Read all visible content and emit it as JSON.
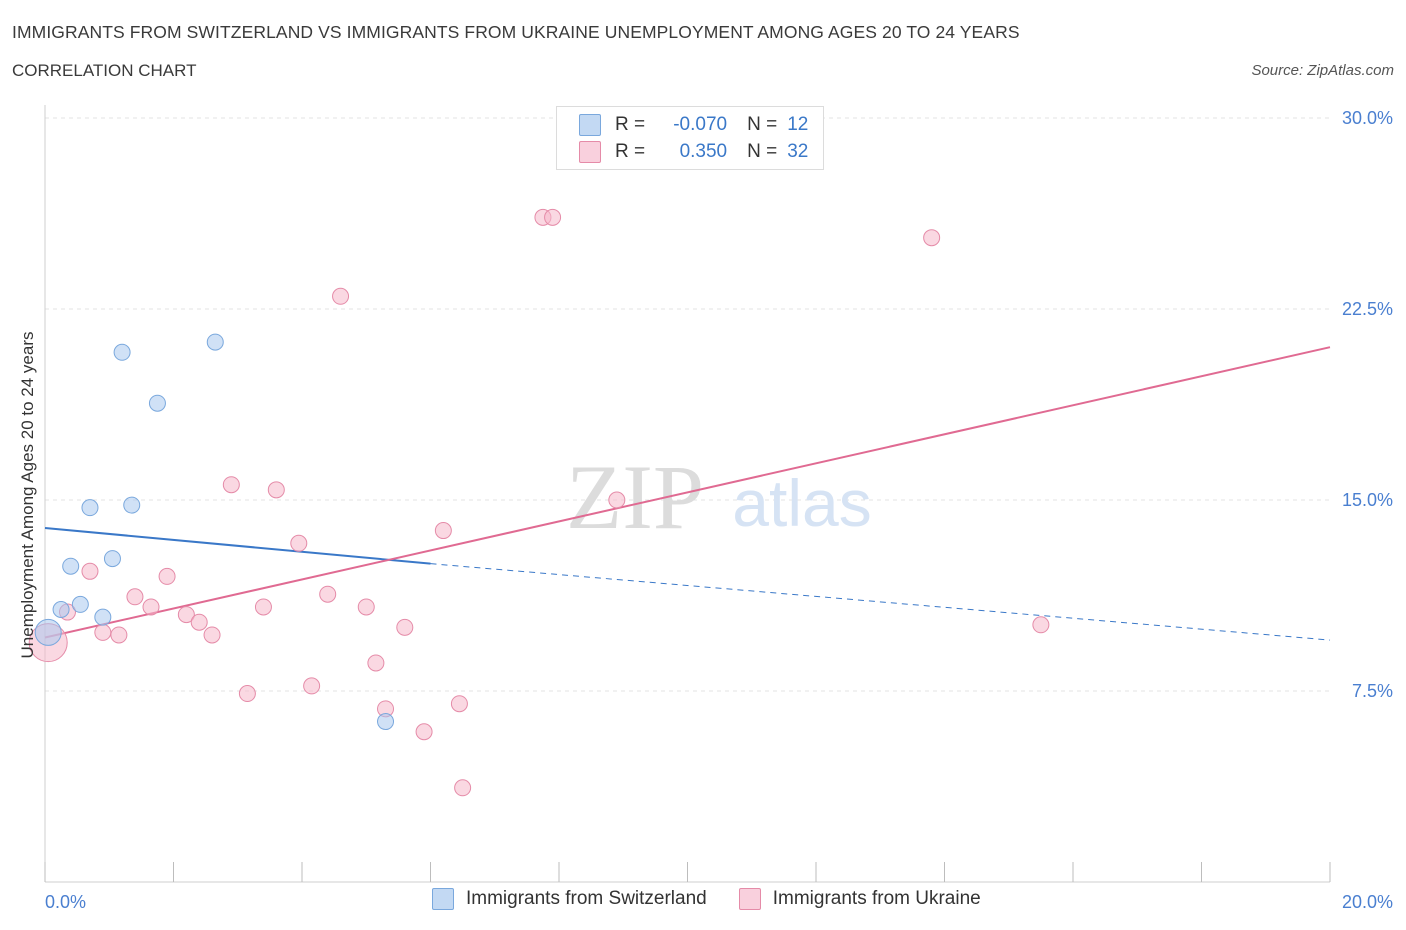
{
  "header": {
    "title": "IMMIGRANTS FROM SWITZERLAND VS IMMIGRANTS FROM UKRAINE UNEMPLOYMENT AMONG AGES 20 TO 24 YEARS",
    "subtitle": "CORRELATION CHART",
    "source": "Source: ZipAtlas.com"
  },
  "watermark": {
    "zip": "ZIP",
    "atlas": "atlas"
  },
  "legend": {
    "rows": [
      {
        "r_label": "R =",
        "r_value": "-0.070",
        "n_label": "N =",
        "n_value": "12",
        "color": "#a9c9ef"
      },
      {
        "r_label": "R =",
        "r_value": "0.350",
        "n_label": "N =",
        "n_value": "32",
        "color": "#f5b8cb"
      }
    ]
  },
  "chart_data": {
    "type": "scatter",
    "xlabel": "",
    "ylabel": "Unemployment Among Ages 20 to 24 years",
    "xlim": [
      0,
      20
    ],
    "ylim": [
      0,
      30
    ],
    "x_tick_labels": [
      "0.0%",
      "20.0%"
    ],
    "y_tick_labels": [
      "7.5%",
      "15.0%",
      "22.5%",
      "30.0%"
    ],
    "y_ticks": [
      7.5,
      15.0,
      22.5,
      30.0
    ],
    "grid": true,
    "legend_position": "bottom",
    "series": [
      {
        "name": "Immigrants from Switzerland",
        "color": "#a9c9ef",
        "stroke": "#7aa8dd",
        "points": [
          [
            0.05,
            9.8
          ],
          [
            0.25,
            10.7
          ],
          [
            0.4,
            12.4
          ],
          [
            0.55,
            10.9
          ],
          [
            0.7,
            14.7
          ],
          [
            0.9,
            10.4
          ],
          [
            1.05,
            12.7
          ],
          [
            1.2,
            20.8
          ],
          [
            1.35,
            14.8
          ],
          [
            1.75,
            18.8
          ],
          [
            2.65,
            21.2
          ],
          [
            5.3,
            6.3
          ]
        ],
        "trend": {
          "x0": 0,
          "y0": 13.9,
          "x1": 6.0,
          "y1": 12.5,
          "x_dash_end": 20.0,
          "y_dash_end": 9.5,
          "color": "#3a78c8"
        }
      },
      {
        "name": "Immigrants from Ukraine",
        "color": "#f5b8cb",
        "stroke": "#e58ba8",
        "points": [
          [
            0.05,
            9.4
          ],
          [
            0.35,
            10.6
          ],
          [
            0.7,
            12.2
          ],
          [
            0.9,
            9.8
          ],
          [
            1.15,
            9.7
          ],
          [
            1.4,
            11.2
          ],
          [
            1.65,
            10.8
          ],
          [
            1.9,
            12.0
          ],
          [
            2.2,
            10.5
          ],
          [
            2.4,
            10.2
          ],
          [
            2.6,
            9.7
          ],
          [
            2.9,
            15.6
          ],
          [
            3.15,
            7.4
          ],
          [
            3.4,
            10.8
          ],
          [
            3.6,
            15.4
          ],
          [
            3.95,
            13.3
          ],
          [
            4.15,
            7.7
          ],
          [
            4.4,
            11.3
          ],
          [
            4.6,
            23.0
          ],
          [
            5.0,
            10.8
          ],
          [
            5.15,
            8.6
          ],
          [
            5.3,
            6.8
          ],
          [
            5.6,
            10.0
          ],
          [
            5.9,
            5.9
          ],
          [
            6.2,
            13.8
          ],
          [
            6.45,
            7.0
          ],
          [
            6.5,
            3.7
          ],
          [
            7.75,
            26.1
          ],
          [
            7.9,
            26.1
          ],
          [
            8.9,
            15.0
          ],
          [
            13.8,
            25.3
          ],
          [
            15.5,
            10.1
          ]
        ],
        "trend": {
          "x0": 0,
          "y0": 9.6,
          "x1": 20.0,
          "y1": 21.0,
          "color": "#e06a92"
        }
      }
    ]
  }
}
